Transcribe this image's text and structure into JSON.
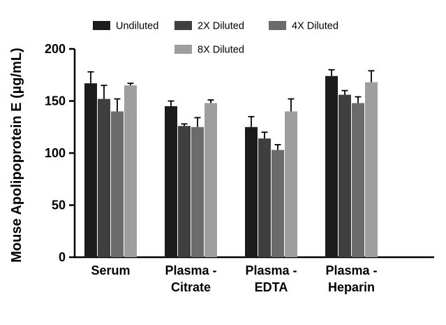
{
  "chart_data": {
    "type": "bar",
    "title": "",
    "xlabel": "",
    "ylabel": "Mouse Apolipoprotein E (µg/mL)",
    "ylim": [
      0,
      200
    ],
    "yticks": [
      0,
      50,
      100,
      150,
      200
    ],
    "grid": false,
    "legend_position": "top",
    "background_color": "#ffffff",
    "axis_color": "#000000",
    "categories": [
      "Serum",
      "Plasma - Citrate",
      "Plasma - EDTA",
      "Plasma - Heparin"
    ],
    "category_lines": [
      [
        "Serum"
      ],
      [
        "Plasma -",
        "Citrate"
      ],
      [
        "Plasma -",
        "EDTA"
      ],
      [
        "Plasma -",
        "Heparin"
      ]
    ],
    "series": [
      {
        "name": "Undiluted",
        "color": "#1c1c1c",
        "values": [
          167,
          145,
          125,
          174
        ],
        "errors": [
          11,
          5,
          10,
          6
        ]
      },
      {
        "name": "2X Diluted",
        "color": "#3f3f3f",
        "values": [
          152,
          126,
          114,
          156
        ],
        "errors": [
          13,
          2,
          6,
          4
        ]
      },
      {
        "name": "4X Diluted",
        "color": "#6b6b6b",
        "values": [
          140,
          125,
          103,
          148
        ],
        "errors": [
          12,
          9,
          5,
          6
        ]
      },
      {
        "name": "8X Diluted",
        "color": "#9e9e9e",
        "values": [
          165,
          148,
          140,
          168
        ],
        "errors": [
          2,
          3,
          12,
          11
        ]
      }
    ]
  }
}
